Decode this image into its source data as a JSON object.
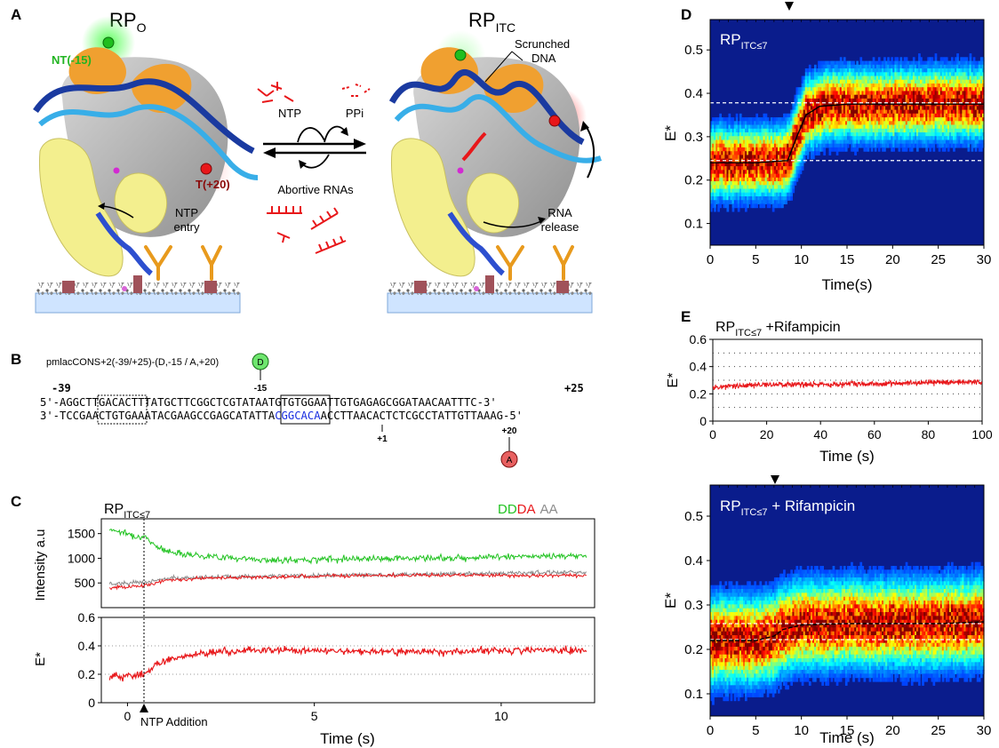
{
  "panels": {
    "A": {
      "letter": "A",
      "rpo_main": "RP",
      "rpo_sub": "O",
      "rpitc_main": "RP",
      "rpitc_sub": "ITC",
      "nt_label": "NT(-15)",
      "t_label": "T(+20)",
      "ntp_entry": [
        "NTP",
        "entry"
      ],
      "scrunched": [
        "Scrunched",
        "DNA"
      ],
      "rna_release": [
        "RNA",
        "release"
      ],
      "ntp": "NTP",
      "ppi": "PPi",
      "abortive": "Abortive RNAs"
    },
    "B": {
      "letter": "B",
      "construct": "pmlacCONS+2(-39/+25)-(D,-15 / A,+20)",
      "donor": "D",
      "acceptor": "A",
      "pos_m39": "-39",
      "pos_p25": "+25",
      "pos_m15": "-15",
      "pos_p1": "+1",
      "pos_p20": "+20",
      "top_prefix": "5'-AGG",
      "top_box1": "CTTGACA",
      "top_mid": "CTTTATGCTTCGGCTCG",
      "top_box2": "TATAAT",
      "top_suffix": "GTGTGGAATTGTGAGAGCGGATAACAATTTC-3'",
      "bot_prefix": "3'-TCC",
      "bot_box1": "GAACTGT",
      "bot_mid": "GAAATACGAAGCCGAGC",
      "bot_box2": "ATATTA",
      "bot_blue": "CGGCACA",
      "bot_suffix": "ACCTTAACACTCTCGCCTATTGTTAAAG-5'"
    },
    "C": {
      "letter": "C",
      "label_main": "RP",
      "label_sub": "ITC≤7",
      "legend": [
        {
          "text": "DD",
          "color": "#22c322"
        },
        {
          "text": "DA",
          "color": "#e8171a"
        },
        {
          "text": "AA",
          "color": "#8c8c8c"
        }
      ],
      "ylabel_top": "Intensity a.u",
      "ylabel_bottom": "E*",
      "xlabel": "Time (s)",
      "annotation": "NTP Addition",
      "top_yticks": [
        "500",
        "1000",
        "1500"
      ],
      "bottom_yticks": [
        "0",
        "0.2",
        "0.4",
        "0.6"
      ],
      "xticks": [
        "0",
        "5",
        "10"
      ]
    },
    "D": {
      "letter": "D",
      "label_main": "RP",
      "label_sub": "ITC≤7",
      "ylabel": "E*",
      "xlabel": "Time(s)",
      "yticks": [
        "0.1",
        "0.2",
        "0.3",
        "0.4",
        "0.5"
      ],
      "xticks": [
        "0",
        "5",
        "10",
        "15",
        "20",
        "25",
        "30"
      ]
    },
    "E": {
      "letter": "E",
      "top_label_main": "RP",
      "top_label_sub": "ITC≤7",
      "top_label_suffix": " +Rifampicin",
      "top_ylabel": "E*",
      "top_xlabel": "Time (s)",
      "top_yticks": [
        "0",
        "0.2",
        "0.4",
        "0.6"
      ],
      "top_xticks": [
        "0",
        "20",
        "40",
        "60",
        "80",
        "100"
      ],
      "bot_label_main": "RP",
      "bot_label_sub": "ITC≤7",
      "bot_label_suffix": " + Rifampicin",
      "bot_ylabel": "E*",
      "bot_xlabel": "Time (s)",
      "bot_yticks": [
        "0.1",
        "0.2",
        "0.3",
        "0.4",
        "0.5"
      ],
      "bot_xticks": [
        "0",
        "5",
        "10",
        "15",
        "20",
        "25",
        "30"
      ]
    }
  },
  "colors": {
    "dd": "#22c322",
    "da": "#e8171a",
    "aa": "#8c8c8c",
    "heat_bg": "#0a1c8c",
    "dna_dark": "#1a3aa0",
    "dna_light": "#38aee8",
    "protein_yellow": "#f3ef8e",
    "protein_orange": "#f0a030",
    "polymerase_gray": "#b9b9b9",
    "rna_red": "#e8171a"
  },
  "chart_data": [
    {
      "type": "line",
      "title": "RP ITC≤7",
      "ylabel": "Intensity a.u",
      "xlim": [
        -0.7,
        12.5
      ],
      "ylim": [
        0,
        1800
      ],
      "series": [
        {
          "name": "DD",
          "x": [
            -0.5,
            0.5,
            1,
            2,
            4,
            6,
            8,
            10,
            12.3
          ],
          "y": [
            1600,
            1400,
            1150,
            1050,
            950,
            1000,
            1000,
            1030,
            1050
          ]
        },
        {
          "name": "DA",
          "x": [
            -0.5,
            0.5,
            1,
            2,
            4,
            6,
            8,
            10,
            12.3
          ],
          "y": [
            400,
            450,
            550,
            600,
            620,
            650,
            660,
            650,
            650
          ]
        },
        {
          "name": "AA",
          "x": [
            -0.5,
            0.5,
            1,
            2,
            4,
            6,
            8,
            10,
            12.3
          ],
          "y": [
            480,
            520,
            580,
            620,
            640,
            660,
            680,
            700,
            720
          ]
        }
      ]
    },
    {
      "type": "line",
      "ylabel": "E*",
      "xlabel": "Time (s)",
      "xlim": [
        -0.7,
        12.5
      ],
      "ylim": [
        0,
        0.6
      ],
      "series": [
        {
          "name": "E*",
          "x": [
            -0.5,
            0.5,
            0.8,
            1.5,
            2.5,
            4,
            6,
            8,
            10,
            12.3
          ],
          "y": [
            0.18,
            0.2,
            0.28,
            0.33,
            0.36,
            0.37,
            0.36,
            0.36,
            0.37,
            0.37
          ]
        }
      ]
    },
    {
      "type": "heatmap",
      "title": "RP ITC≤7",
      "xlabel": "Time(s)",
      "ylabel": "E*",
      "xlim": [
        0,
        30
      ],
      "ylim": [
        0.05,
        0.57
      ],
      "mean_curve": {
        "x": [
          0,
          5,
          8.5,
          9.5,
          10.5,
          12,
          15,
          20,
          30
        ],
        "y": [
          0.24,
          0.24,
          0.245,
          0.3,
          0.35,
          0.37,
          0.375,
          0.375,
          0.375
        ]
      },
      "reference_lines": [
        0.245,
        0.378
      ]
    },
    {
      "type": "line",
      "title": "RP ITC≤7 +Rifampicin",
      "xlabel": "Time (s)",
      "ylabel": "E*",
      "xlim": [
        0,
        100
      ],
      "ylim": [
        0,
        0.6
      ],
      "series": [
        {
          "name": "E*",
          "x": [
            0,
            25,
            50,
            75,
            100
          ],
          "y": [
            0.25,
            0.27,
            0.27,
            0.28,
            0.29
          ]
        }
      ]
    },
    {
      "type": "heatmap",
      "title": "RP ITC≤7 + Rifampicin",
      "xlabel": "Time (s)",
      "ylabel": "E*",
      "xlim": [
        0,
        30
      ],
      "ylim": [
        0.05,
        0.57
      ],
      "mean_curve": {
        "x": [
          0,
          5,
          7,
          8,
          10,
          15,
          20,
          25,
          30
        ],
        "y": [
          0.22,
          0.22,
          0.23,
          0.245,
          0.255,
          0.258,
          0.258,
          0.258,
          0.262
        ]
      },
      "reference_lines": [
        0.222,
        0.258
      ]
    }
  ]
}
